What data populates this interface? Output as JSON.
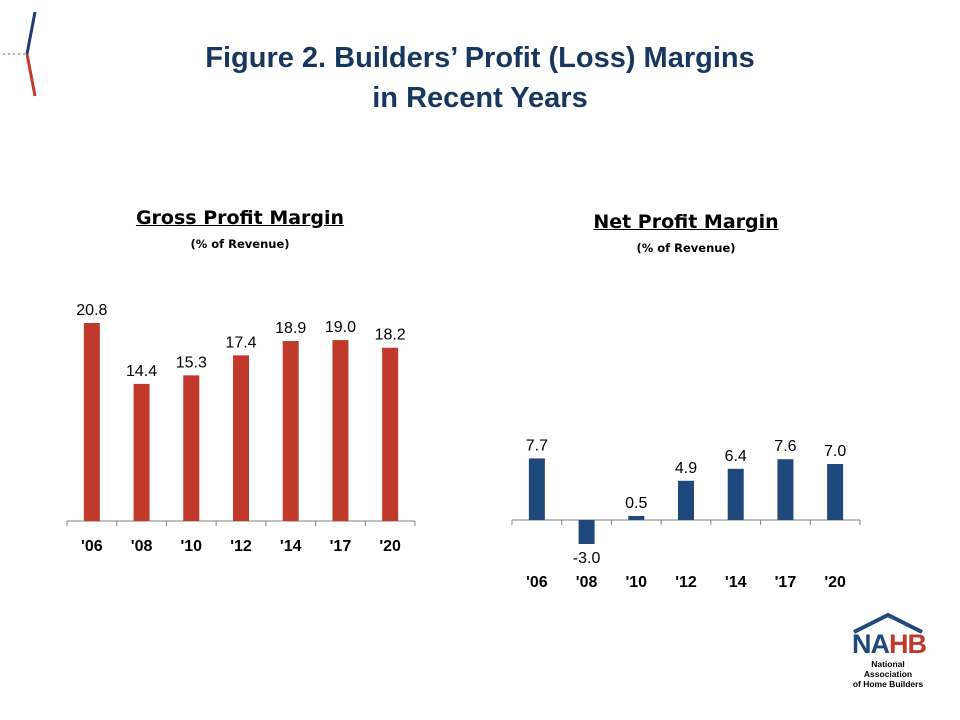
{
  "page": {
    "title_line1": "Figure 2. Builders’ Profit (Loss) Margins",
    "title_line2": "in Recent Years"
  },
  "colors": {
    "title": "#17375e",
    "gross_bar": "#c0392b",
    "net_bar": "#1f497d",
    "logo_red": "#c0392b",
    "logo_blue": "#1f497d"
  },
  "logo": {
    "letters": "NAHB",
    "line1": "National Association",
    "line2": "of Home Builders"
  },
  "chart_data": [
    {
      "type": "bar",
      "title": "Gross Profit Margin",
      "subtitle": "(% of Revenue)",
      "categories": [
        "'06",
        "'08",
        "'10",
        "'12",
        "'14",
        "'17",
        "'20"
      ],
      "values": [
        20.8,
        14.4,
        15.3,
        17.4,
        18.9,
        19.0,
        18.2
      ],
      "labels": [
        "20.8",
        "14.4",
        "15.3",
        "17.4",
        "18.9",
        "19.0",
        "18.2"
      ],
      "color": "#c0392b",
      "grid": false,
      "legend": "none"
    },
    {
      "type": "bar",
      "title": "Net Profit Margin",
      "subtitle": "(% of Revenue)",
      "categories": [
        "'06",
        "'08",
        "'10",
        "'12",
        "'14",
        "'17",
        "'20"
      ],
      "values": [
        7.7,
        -3.0,
        0.5,
        4.9,
        6.4,
        7.6,
        7.0
      ],
      "labels": [
        "7.7",
        "-3.0",
        "0.5",
        "4.9",
        "6.4",
        "7.6",
        "7.0"
      ],
      "color": "#1f497d",
      "grid": false,
      "legend": "none"
    }
  ]
}
